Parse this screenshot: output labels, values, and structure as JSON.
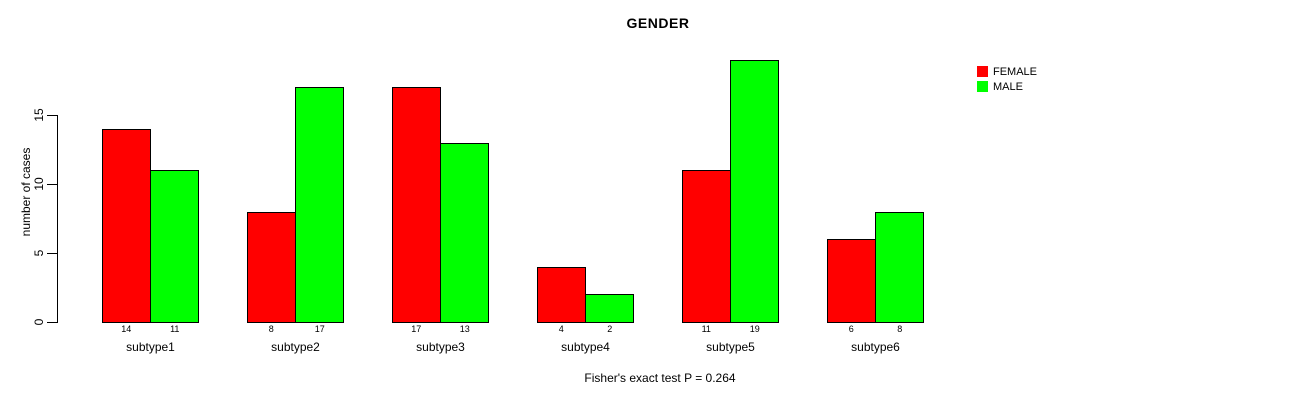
{
  "chart_data": {
    "type": "bar",
    "title": "GENDER",
    "ylabel": "number of cases",
    "xlabel": "",
    "annotation": "Fisher's exact test P = 0.264",
    "categories": [
      "subtype1",
      "subtype2",
      "subtype3",
      "subtype4",
      "subtype5",
      "subtype6"
    ],
    "series": [
      {
        "name": "FEMALE",
        "color": "#ff0000",
        "values": [
          14,
          8,
          17,
          4,
          11,
          6
        ]
      },
      {
        "name": "MALE",
        "color": "#00ff00",
        "values": [
          11,
          17,
          13,
          2,
          19,
          8
        ]
      }
    ],
    "value_labels_shown": true,
    "yticks": [
      0,
      5,
      10,
      15
    ],
    "ylim": [
      0,
      19
    ],
    "grid": false,
    "legend_position": "top-right",
    "bar_border_color": "#000000",
    "axis_color": "#000000",
    "background_color": "#ffffff"
  }
}
